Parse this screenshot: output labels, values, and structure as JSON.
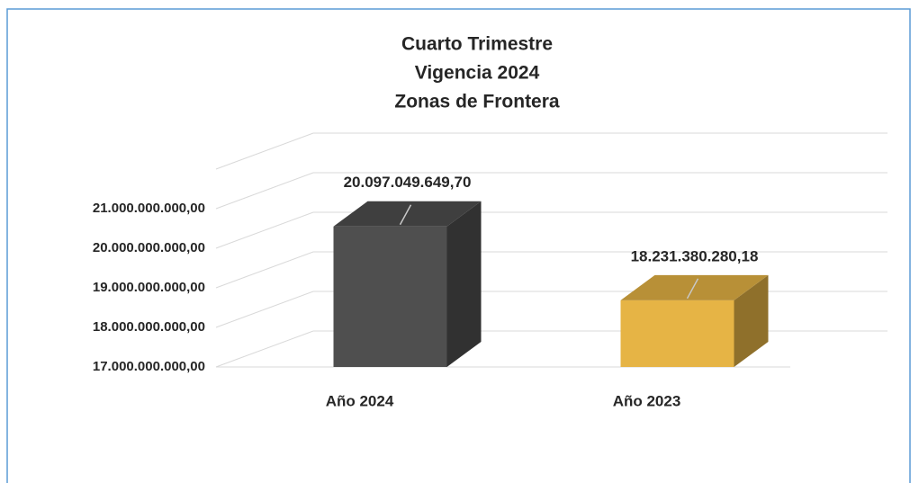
{
  "chart_data": {
    "type": "bar3d",
    "title": [
      "Cuarto Trimestre",
      "Vigencia 2024",
      "Zonas de Frontera"
    ],
    "categories": [
      "Año 2024",
      "Año 2023"
    ],
    "values": [
      20097049649.7,
      18231380280.18
    ],
    "value_labels": [
      "20.097.049.649,70",
      "18.231.380.280,18"
    ],
    "colors": [
      "#4f4f4f",
      "#e6b445"
    ],
    "ylim": [
      17000000000,
      22000000000
    ],
    "yticks": [
      {
        "value": 17000000000,
        "label": "17.000.000.000,00"
      },
      {
        "value": 18000000000,
        "label": "18.000.000.000,00"
      },
      {
        "value": 19000000000,
        "label": "19.000.000.000,00"
      },
      {
        "value": 20000000000,
        "label": "20.000.000.000,00"
      },
      {
        "value": 21000000000,
        "label": "21.000.000.000,00"
      }
    ],
    "grid": true
  }
}
